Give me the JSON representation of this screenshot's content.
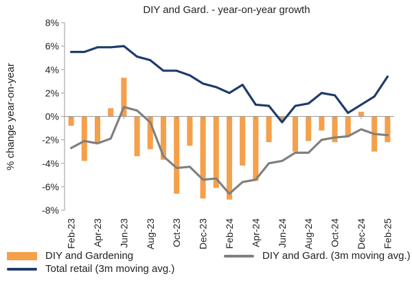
{
  "chart_data": {
    "type": "bar",
    "title": "DIY and Gard. - year-on-year  growth",
    "ylabel": "% change year-on-year",
    "xlabel": "",
    "ylim": [
      -8,
      8
    ],
    "yticks": [
      -8,
      -6,
      -4,
      -2,
      0,
      2,
      4,
      6,
      8
    ],
    "ytick_labels": [
      "-8%",
      "-6%",
      "-4%",
      "-2%",
      "0%",
      "2%",
      "4%",
      "6%",
      "8%"
    ],
    "x": [
      "Feb-23",
      "Mar-23",
      "Apr-23",
      "May-23",
      "Jun-23",
      "Jul-23",
      "Aug-23",
      "Sep-23",
      "Oct-23",
      "Nov-23",
      "Dec-23",
      "Jan-24",
      "Feb-24",
      "Mar-24",
      "Apr-24",
      "May-24",
      "Jun-24",
      "Jul-24",
      "Aug-24",
      "Sep-24",
      "Oct-24",
      "Nov-24",
      "Dec-24",
      "Jan-25",
      "Feb-25"
    ],
    "xtick_labels": [
      "Feb-23",
      "Apr-23",
      "Jun-23",
      "Aug-23",
      "Oct-23",
      "Dec-23",
      "Feb-24",
      "Apr-24",
      "Jun-24",
      "Aug-24",
      "Oct-24",
      "Dec-24",
      "Feb-25"
    ],
    "grid": false,
    "legend_position": "bottom",
    "series": [
      {
        "name": "DIY and Gardening",
        "type": "bar",
        "color": "#F5A04A",
        "values": [
          -0.8,
          -3.8,
          -2.3,
          0.7,
          3.3,
          -3.4,
          -2.8,
          -3.7,
          -6.6,
          -2.5,
          -7.0,
          -6.1,
          -7.1,
          -4.2,
          -5.5,
          -2.2,
          -0.4,
          -3.0,
          -2.1,
          -1.2,
          -2.2,
          -1.7,
          0.4,
          -3.0,
          -2.2
        ]
      },
      {
        "name": "DIY and Gard. (3m moving avg.)",
        "type": "line",
        "color": "#808080",
        "values": [
          -2.7,
          -2.1,
          -2.3,
          -1.9,
          0.8,
          0.5,
          -0.5,
          -3.4,
          -4.4,
          -4.3,
          -5.4,
          -5.3,
          -6.6,
          -5.6,
          -5.4,
          -4.0,
          -3.8,
          -3.1,
          -3.1,
          -2.0,
          -1.8,
          -1.7,
          -1.1,
          -1.5,
          -1.6
        ]
      },
      {
        "name": "Total retail (3m moving avg.)",
        "type": "line",
        "color": "#1F3B6B",
        "values": [
          5.5,
          5.5,
          5.9,
          5.9,
          6.0,
          5.1,
          4.8,
          3.9,
          3.9,
          3.5,
          2.8,
          2.5,
          2.0,
          2.7,
          1.0,
          0.9,
          -0.5,
          0.9,
          1.1,
          2.0,
          1.8,
          0.3,
          1.0,
          1.7,
          3.4
        ]
      }
    ]
  }
}
